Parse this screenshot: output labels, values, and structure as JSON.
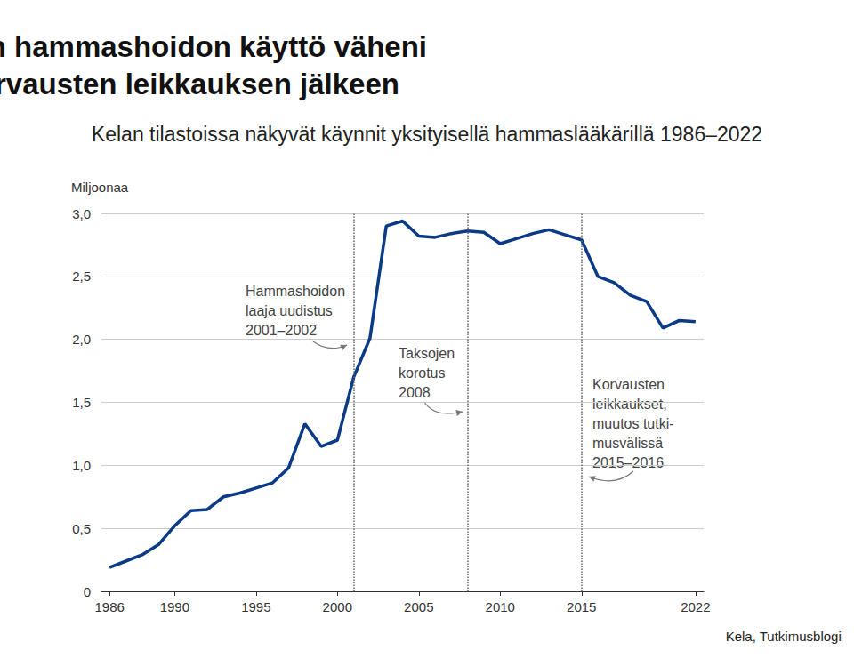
{
  "chart_data": {
    "type": "line",
    "title": "Yksityisen hammashoidon käyttö väheni\nKela-korvausten leikkauksen jälkeen",
    "subtitle": "Kelan tilastoissa näkyvät käynnit yksityisellä hammaslääkärillä 1986–2022",
    "ylabel": "Miljoonaa",
    "source": "Kela, Tutkimusblogi",
    "x": [
      1986,
      1987,
      1988,
      1989,
      1990,
      1991,
      1992,
      1993,
      1994,
      1995,
      1996,
      1997,
      1998,
      1999,
      2000,
      2001,
      2002,
      2003,
      2004,
      2005,
      2006,
      2007,
      2008,
      2009,
      2010,
      2011,
      2012,
      2013,
      2014,
      2015,
      2016,
      2017,
      2018,
      2019,
      2020,
      2021,
      2022
    ],
    "values": [
      0.19,
      0.24,
      0.29,
      0.37,
      0.52,
      0.64,
      0.65,
      0.75,
      0.78,
      0.82,
      0.86,
      0.98,
      1.33,
      1.15,
      1.2,
      1.7,
      2.01,
      2.9,
      2.94,
      2.82,
      2.81,
      2.84,
      2.86,
      2.85,
      2.76,
      2.8,
      2.84,
      2.87,
      2.83,
      2.79,
      2.5,
      2.45,
      2.35,
      2.3,
      2.09,
      2.15,
      2.14
    ],
    "color": "#0b3a87",
    "xlim": [
      1985.5,
      2022.5
    ],
    "xticks": [
      1986,
      1990,
      1995,
      2000,
      2005,
      2010,
      2015,
      2022
    ],
    "ylim": [
      0,
      3
    ],
    "yticks": [
      0,
      {
        "value": 0.5,
        "label": "0,5"
      },
      {
        "value": 1,
        "label": "1,0"
      },
      {
        "value": 1.5,
        "label": "1,5"
      },
      {
        "value": 2,
        "label": "2,0"
      },
      {
        "value": 2.5,
        "label": "2,5"
      },
      {
        "value": 3,
        "label": "3,0"
      }
    ],
    "grid": true,
    "annotations": [
      {
        "x": 2001,
        "text": "Hammashoidon\nlaaja uudistus\n2001–2002"
      },
      {
        "x": 2008,
        "text": "Taksojen\nkorotus\n2008"
      },
      {
        "x": 2015,
        "text": "Korvausten\nleikkaukset,\nmuutos tutki-\nmusvälissä\n2015–2016"
      }
    ]
  }
}
